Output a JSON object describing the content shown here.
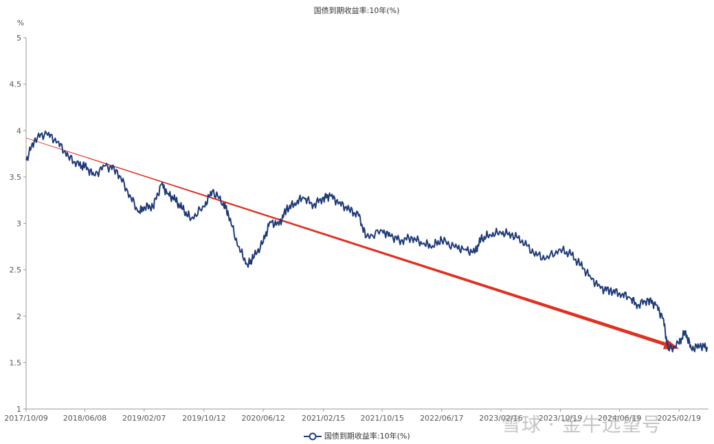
{
  "chart_data": {
    "type": "line",
    "title": "国债到期收益率:10年(%)",
    "ylabel": "%",
    "ylim": [
      1,
      5
    ],
    "yticks": [
      "5",
      "4.5",
      "4",
      "3.5",
      "3",
      "2.5",
      "2",
      "1.5",
      "1"
    ],
    "x_tick_labels": [
      "2017/10/09",
      "2018/06/08",
      "2019/02/07",
      "2019/10/12",
      "2020/06/12",
      "2021/02/15",
      "2021/10/15",
      "2022/06/17",
      "2023/02/16",
      "2023/10/19",
      "2024/06/19",
      "2025/02/19"
    ],
    "grid": false,
    "legend_position": "bottom",
    "series": [
      {
        "name": "国债到期收益率:10年(%)",
        "color": "#1f3a7a",
        "x": [
          "2017/10/09",
          "2017/11/15",
          "2018/01/01",
          "2018/02/15",
          "2018/04/01",
          "2018/05/15",
          "2018/06/08",
          "2018/07/15",
          "2018/09/01",
          "2018/10/15",
          "2018/12/01",
          "2019/01/15",
          "2019/02/07",
          "2019/03/15",
          "2019/04/20",
          "2019/05/15",
          "2019/06/15",
          "2019/07/15",
          "2019/08/20",
          "2019/10/12",
          "2019/11/15",
          "2019/12/31",
          "2020/01/20",
          "2020/03/01",
          "2020/04/08",
          "2020/05/01",
          "2020/06/12",
          "2020/07/10",
          "2020/08/15",
          "2020/09/15",
          "2020/10/20",
          "2020/11/25",
          "2021/01/05",
          "2021/02/15",
          "2021/03/15",
          "2021/04/20",
          "2021/06/01",
          "2021/07/10",
          "2021/08/10",
          "2021/10/15",
          "2021/11/20",
          "2022/01/01",
          "2022/02/15",
          "2022/04/01",
          "2022/05/10",
          "2022/06/17",
          "2022/08/10",
          "2022/09/20",
          "2022/10/31",
          "2022/11/25",
          "2022/12/31",
          "2023/02/16",
          "2023/03/31",
          "2023/05/15",
          "2023/06/30",
          "2023/08/20",
          "2023/10/19",
          "2023/12/01",
          "2024/01/10",
          "2024/02/20",
          "2024/04/01",
          "2024/05/10",
          "2024/06/19",
          "2024/07/31",
          "2024/09/01",
          "2024/10/15",
          "2024/11/15",
          "2024/12/15",
          "2025/01/05",
          "2025/02/19",
          "2025/03/15",
          "2025/04/10",
          "2025/05/15",
          "2025/06/15"
        ],
        "values": [
          3.68,
          3.92,
          3.97,
          3.88,
          3.72,
          3.62,
          3.62,
          3.52,
          3.62,
          3.58,
          3.35,
          3.12,
          3.18,
          3.18,
          3.42,
          3.32,
          3.25,
          3.15,
          3.05,
          3.18,
          3.35,
          3.22,
          3.1,
          2.75,
          2.55,
          2.62,
          2.8,
          3.02,
          2.98,
          3.15,
          3.22,
          3.28,
          3.2,
          3.28,
          3.3,
          3.22,
          3.15,
          3.08,
          2.85,
          2.92,
          2.86,
          2.82,
          2.85,
          2.78,
          2.76,
          2.82,
          2.74,
          2.72,
          2.68,
          2.82,
          2.88,
          2.9,
          2.88,
          2.82,
          2.68,
          2.62,
          2.72,
          2.66,
          2.55,
          2.42,
          2.3,
          2.28,
          2.25,
          2.2,
          2.12,
          2.18,
          2.12,
          1.98,
          1.64,
          1.7,
          1.84,
          1.65,
          1.68,
          1.67
        ]
      }
    ],
    "annotations": [
      {
        "type": "trend-arrow",
        "color": "#e03020",
        "from": {
          "x": "2017/10/09",
          "y": 3.92
        },
        "to": {
          "x": "2025/02/19",
          "y": 1.65
        }
      }
    ]
  },
  "legend": {
    "label": "国债到期收益率:10年(%)"
  },
  "watermark": {
    "text": "雪球 · 金牛远望号"
  }
}
